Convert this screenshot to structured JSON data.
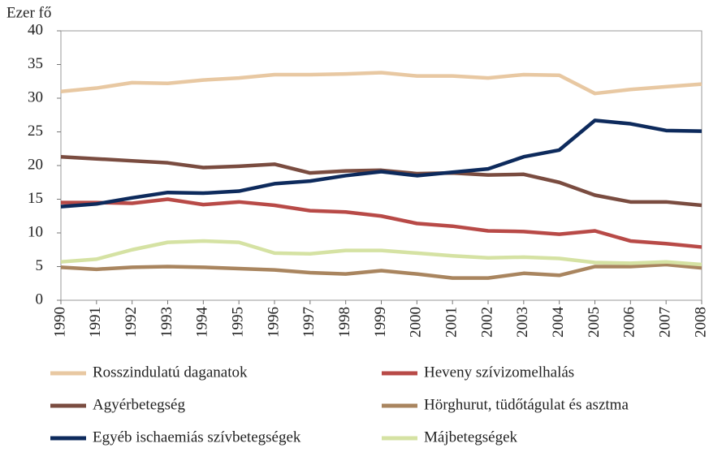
{
  "chart_data": {
    "type": "line",
    "y_label": "Ezer fő",
    "categories": [
      "1990",
      "1991",
      "1992",
      "1993",
      "1994",
      "1995",
      "1996",
      "1997",
      "1998",
      "1999",
      "2000",
      "2001",
      "2002",
      "2003",
      "2004",
      "2005",
      "2006",
      "2007",
      "2008"
    ],
    "ylim": [
      0,
      40
    ],
    "yticks": [
      0,
      5,
      10,
      15,
      20,
      25,
      30,
      35,
      40
    ],
    "grid": false,
    "series": [
      {
        "name": "Rosszindulatú daganatok",
        "color": "#e8c8a2",
        "values": [
          31,
          31.5,
          32.3,
          32.2,
          32.7,
          33,
          33.5,
          33.5,
          33.6,
          33.8,
          33.3,
          33.3,
          33,
          33.5,
          33.4,
          30.7,
          31.3,
          31.7,
          32.1
        ]
      },
      {
        "name": "Heveny szívizomelhalás",
        "color": "#b84a47",
        "values": [
          14.5,
          14.5,
          14.4,
          15,
          14.2,
          14.6,
          14.1,
          13.3,
          13.1,
          12.5,
          11.4,
          11,
          10.3,
          10.2,
          9.8,
          10.3,
          8.8,
          8.4,
          7.9
        ]
      },
      {
        "name": "Agyérbetegség",
        "color": "#7a4c40",
        "values": [
          21.3,
          21,
          20.7,
          20.4,
          19.7,
          19.9,
          20.2,
          18.9,
          19.2,
          19.3,
          18.8,
          18.9,
          18.6,
          18.7,
          17.5,
          15.6,
          14.6,
          14.6,
          14.1
        ]
      },
      {
        "name": "Hörghurut, tüdőtágulat és asztma",
        "color": "#a9855f",
        "values": [
          4.9,
          4.6,
          4.9,
          5,
          4.9,
          4.7,
          4.5,
          4.1,
          3.9,
          4.4,
          3.9,
          3.3,
          3.3,
          4.0,
          3.7,
          5.0,
          5.0,
          5.3,
          4.8
        ]
      },
      {
        "name": "Egyéb ischaemiás szívbetegségek",
        "color": "#0d2a5c",
        "values": [
          13.9,
          14.3,
          15.2,
          16,
          15.9,
          16.2,
          17.3,
          17.7,
          18.5,
          19.1,
          18.5,
          19,
          19.5,
          21.3,
          22.3,
          26.7,
          26.2,
          25.2,
          25.1
        ]
      },
      {
        "name": "Májbetegségek",
        "color": "#d5e2a3",
        "values": [
          5.7,
          6.1,
          7.5,
          8.6,
          8.8,
          8.6,
          7,
          6.9,
          7.4,
          7.4,
          7,
          6.6,
          6.3,
          6.4,
          6.2,
          5.6,
          5.5,
          5.7,
          5.3
        ]
      }
    ]
  }
}
